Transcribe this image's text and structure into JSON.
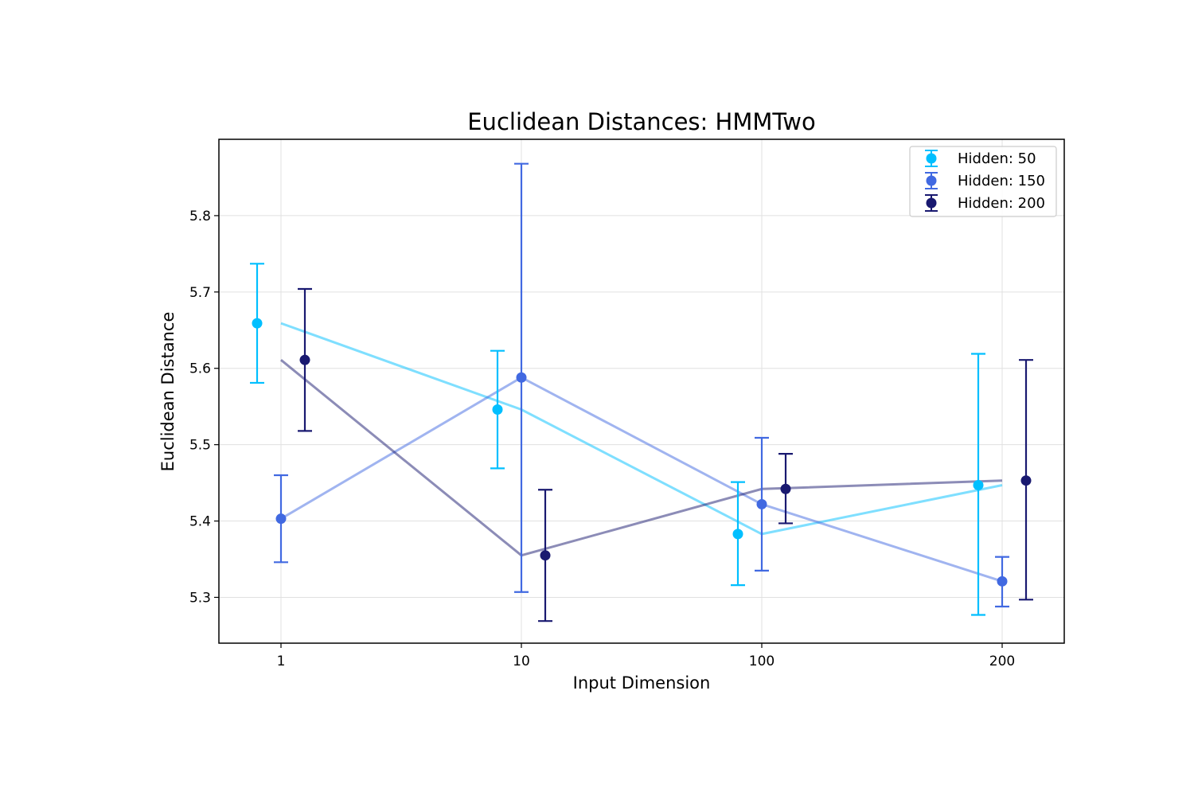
{
  "chart_data": {
    "type": "line",
    "title": "Euclidean Distances: HMMTwo",
    "xlabel": "Input Dimension",
    "ylabel": "Euclidean Distance",
    "categories": [
      "1",
      "10",
      "100",
      "200"
    ],
    "yticks": [
      "5.3",
      "5.4",
      "5.5",
      "5.6",
      "5.7",
      "5.8"
    ],
    "ylim": [
      5.24,
      5.9
    ],
    "grid": true,
    "legend_position": "top-right",
    "error_bars": true,
    "series": [
      {
        "name": "Hidden: 50",
        "color": "#00bfff",
        "values": [
          5.659,
          5.546,
          5.383,
          5.447
        ],
        "error_low": [
          5.581,
          5.469,
          5.316,
          5.277
        ],
        "error_high": [
          5.737,
          5.623,
          5.451,
          5.619
        ]
      },
      {
        "name": "Hidden: 150",
        "color": "#4169e1",
        "values": [
          5.403,
          5.588,
          5.422,
          5.321
        ],
        "error_low": [
          5.346,
          5.307,
          5.335,
          5.288
        ],
        "error_high": [
          5.46,
          5.868,
          5.509,
          5.353
        ]
      },
      {
        "name": "Hidden: 200",
        "color": "#191970",
        "values": [
          5.611,
          5.355,
          5.442,
          5.453
        ],
        "error_low": [
          5.518,
          5.269,
          5.397,
          5.297
        ],
        "error_high": [
          5.704,
          5.441,
          5.488,
          5.611
        ]
      }
    ]
  }
}
